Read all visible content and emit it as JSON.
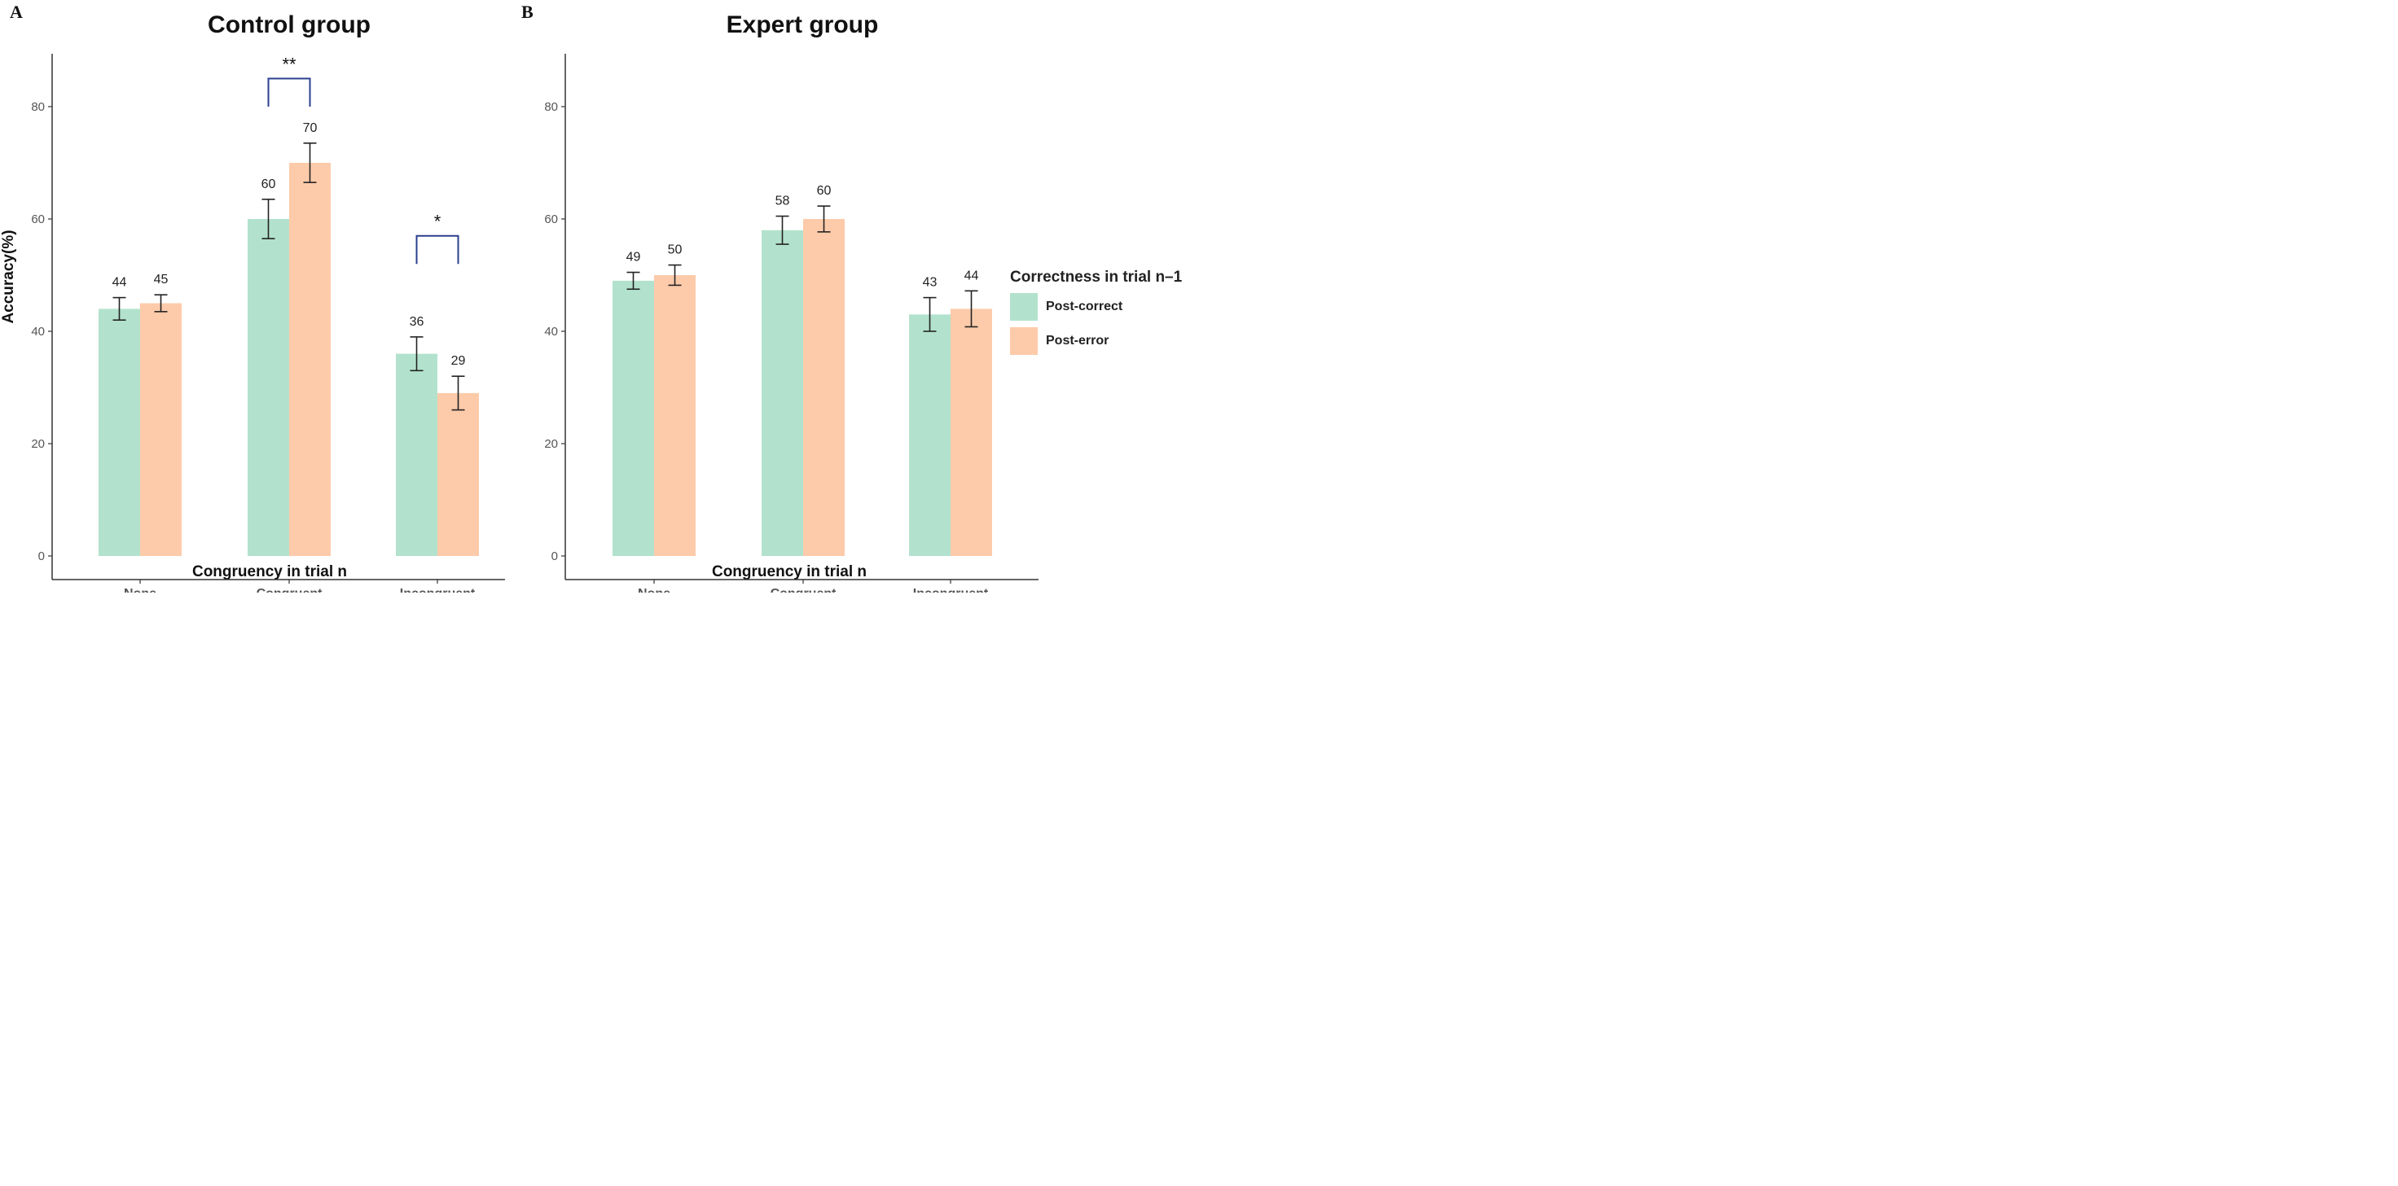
{
  "figure": {
    "legend": {
      "title": "Correctness in trial n–1",
      "items": [
        {
          "label": "Post-correct",
          "color": "#b2e2cd"
        },
        {
          "label": "Post-error",
          "color": "#fdcbaa"
        }
      ]
    }
  },
  "chart_data": [
    {
      "type": "bar",
      "panel_letter": "A",
      "title": "Control group",
      "xlabel": "Congruency in trial n",
      "ylabel": "Accuracy(%)",
      "ylim": [
        0,
        90
      ],
      "yticks": [
        0,
        20,
        40,
        60,
        80
      ],
      "categories": [
        "None",
        "Congruent",
        "Incongruent"
      ],
      "series": [
        {
          "name": "Post-correct",
          "color": "#b2e2cd",
          "values": [
            44,
            60,
            36
          ],
          "errors": [
            2,
            3.5,
            3
          ]
        },
        {
          "name": "Post-error",
          "color": "#fdcbaa",
          "values": [
            45,
            70,
            29
          ],
          "errors": [
            1.5,
            3.5,
            3
          ]
        }
      ],
      "value_labels": [
        "44",
        "45",
        "60",
        "70",
        "36",
        "29"
      ],
      "significance": [
        {
          "category": "Congruent",
          "label": "**",
          "y": 80
        },
        {
          "category": "Incongruent",
          "label": "*",
          "y": 52
        }
      ]
    },
    {
      "type": "bar",
      "panel_letter": "B",
      "title": "Expert group",
      "xlabel": "Congruency in trial n",
      "ylabel": "",
      "ylim": [
        0,
        90
      ],
      "yticks": [
        0,
        20,
        40,
        60,
        80
      ],
      "categories": [
        "None",
        "Congruent",
        "Incongruent"
      ],
      "series": [
        {
          "name": "Post-correct",
          "color": "#b2e2cd",
          "values": [
            49,
            58,
            43
          ],
          "errors": [
            1.5,
            2.5,
            3
          ]
        },
        {
          "name": "Post-error",
          "color": "#fdcbaa",
          "values": [
            50,
            60,
            44
          ],
          "errors": [
            1.8,
            2.3,
            3.2
          ]
        }
      ],
      "value_labels": [
        "49",
        "50",
        "58",
        "60",
        "43",
        "44"
      ],
      "significance": []
    }
  ]
}
